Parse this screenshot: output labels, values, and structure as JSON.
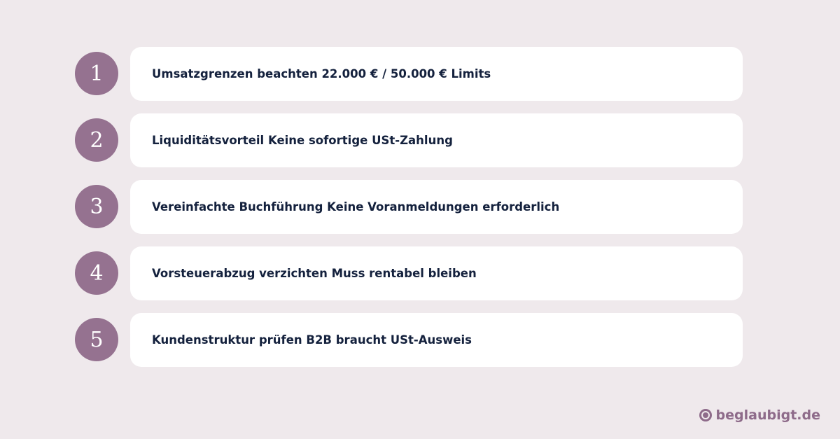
{
  "colors": {
    "background": "#efe9ec",
    "badge": "#957290",
    "text": "#14213d",
    "logo": "#8e6b8a"
  },
  "items": [
    {
      "number": "1",
      "text": "Umsatzgrenzen beachten 22.000 € / 50.000 € Limits"
    },
    {
      "number": "2",
      "text": "Liquiditätsvorteil Keine sofortige USt-Zahlung"
    },
    {
      "number": "3",
      "text": "Vereinfachte Buchführung Keine Voranmeldungen erforderlich"
    },
    {
      "number": "4",
      "text": "Vorsteuerabzug verzichten Muss rentabel bleiben"
    },
    {
      "number": "5",
      "text": "Kundenstruktur prüfen B2B braucht USt-Ausweis"
    }
  ],
  "logo": {
    "icon": "target-circle-icon",
    "text": "beglaubigt.de"
  }
}
